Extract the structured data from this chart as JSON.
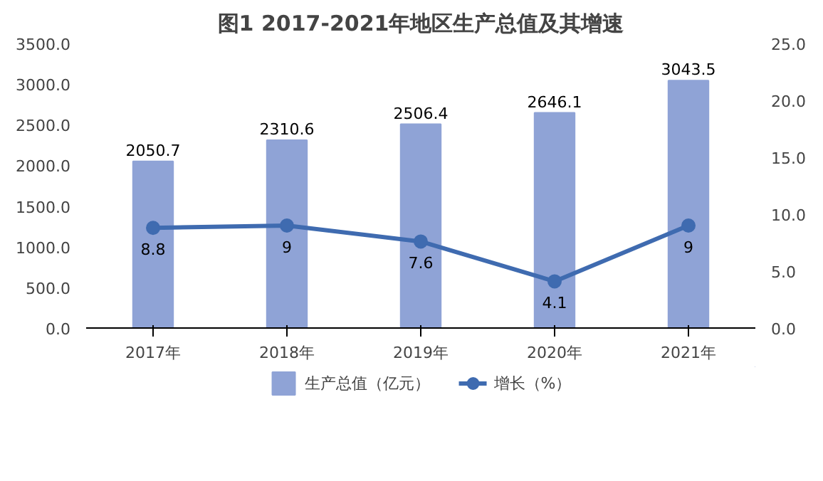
{
  "chart_data": {
    "type": "bar",
    "title": "图1 2017-2021年地区生产总值及其增速",
    "categories": [
      "2017年",
      "2018年",
      "2019年",
      "2020年",
      "2021年"
    ],
    "series": [
      {
        "name": "生产总值（亿元）",
        "color": "#8fa3d6",
        "values": [
          2050.7,
          2310.6,
          2506.4,
          2646.1,
          3043.5
        ]
      },
      {
        "name": "增长（%）",
        "type": "line",
        "axis": "y2",
        "color": "#3f6bb0",
        "marker": "circle",
        "values": [
          8.8,
          9,
          7.6,
          4.1,
          9
        ]
      }
    ],
    "ylim": [
      0,
      3500
    ],
    "yticks": [
      {
        "value": 0,
        "label": "0.0"
      },
      {
        "value": 500,
        "label": "500.0"
      },
      {
        "value": 1000,
        "label": "1000.0"
      },
      {
        "value": 1500,
        "label": "1500.0"
      },
      {
        "value": 2000,
        "label": "2000.0"
      },
      {
        "value": 2500,
        "label": "2500.0"
      },
      {
        "value": 3000,
        "label": "3000.0"
      },
      {
        "value": 3500,
        "label": "3500.0"
      }
    ],
    "y2lim": [
      0,
      25
    ],
    "y2ticks": [
      {
        "value": 0,
        "label": "0.0"
      },
      {
        "value": 5,
        "label": "5.0"
      },
      {
        "value": 10,
        "label": "10.0"
      },
      {
        "value": 15,
        "label": "15.0"
      },
      {
        "value": 20,
        "label": "20.0"
      },
      {
        "value": 25,
        "label": "25.0"
      }
    ],
    "data_labels": true,
    "legend": "bottom"
  }
}
